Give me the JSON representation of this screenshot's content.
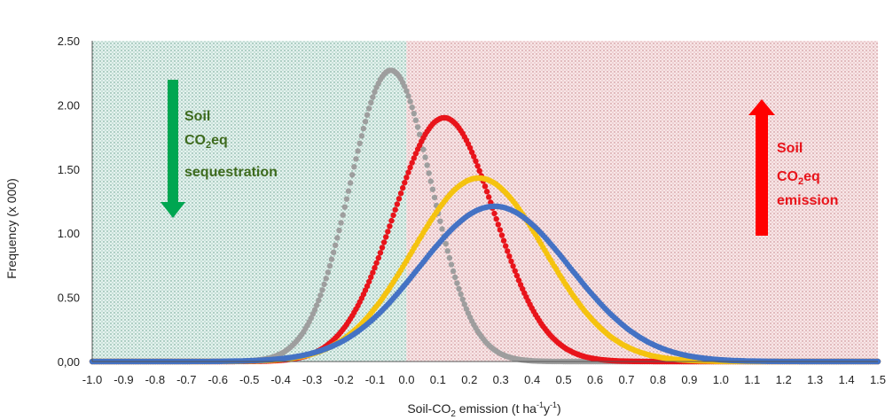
{
  "chart_data": {
    "type": "scatter",
    "title": "",
    "xlabel_main": "Soil-CO",
    "xlabel_sub": "2",
    "xlabel_rest": " emission (t ha",
    "xlabel_sup1": "-1",
    "xlabel_y": "y",
    "xlabel_sup2": "-1",
    "xlabel_close": ")",
    "ylabel": "Frequency (x 000)",
    "xlim": [
      -1.0,
      1.5
    ],
    "ylim": [
      0,
      2.5
    ],
    "x_ticks": [
      "-1.0",
      "-0.9",
      "-0.8",
      "-0.7",
      "-0.6",
      "-0.5",
      "-0.4",
      "-0.3",
      "-0.2",
      "-0.1",
      "0.0",
      "0.1",
      "0.2",
      "0.3",
      "0.4",
      "0.5",
      "0.6",
      "0.7",
      "0.8",
      "0.9",
      "1.0",
      "1.1",
      "1.2",
      "1.3",
      "1.4",
      "1.5"
    ],
    "y_ticks": [
      "0,00",
      "0.50",
      "1.00",
      "1.50",
      "2.00",
      "2.50"
    ],
    "regions": [
      {
        "name": "sequestration",
        "from": -1.0,
        "to": 0.0,
        "color": "#d8ece6"
      },
      {
        "name": "emission",
        "from": 0.0,
        "to": 1.5,
        "color": "#f3dadb"
      }
    ],
    "series": [
      {
        "color": "#9e9e9e",
        "curve": {
          "peak": 2.27,
          "mean": -0.05,
          "sd": 0.13
        }
      },
      {
        "color": "#e8141b",
        "curve": {
          "peak": 1.9,
          "mean": 0.12,
          "sd": 0.16
        }
      },
      {
        "color": "#f5c30f",
        "curve": {
          "peak": 1.43,
          "mean": 0.23,
          "sd": 0.21
        }
      },
      {
        "color": "#4472c4",
        "curve": {
          "peak": 1.21,
          "mean": 0.28,
          "sd": 0.24
        }
      }
    ],
    "annotations": {
      "sequestration": {
        "line1": "Soil",
        "line2a": "CO",
        "line2b": "2",
        "line2c": "eq",
        "line3": "sequestration",
        "color": "#00a651"
      },
      "emission": {
        "line1": "Soil",
        "line2a": "CO",
        "line2b": "2",
        "line2c": "eq",
        "line3": "emission",
        "color": "#ff0000"
      }
    }
  }
}
